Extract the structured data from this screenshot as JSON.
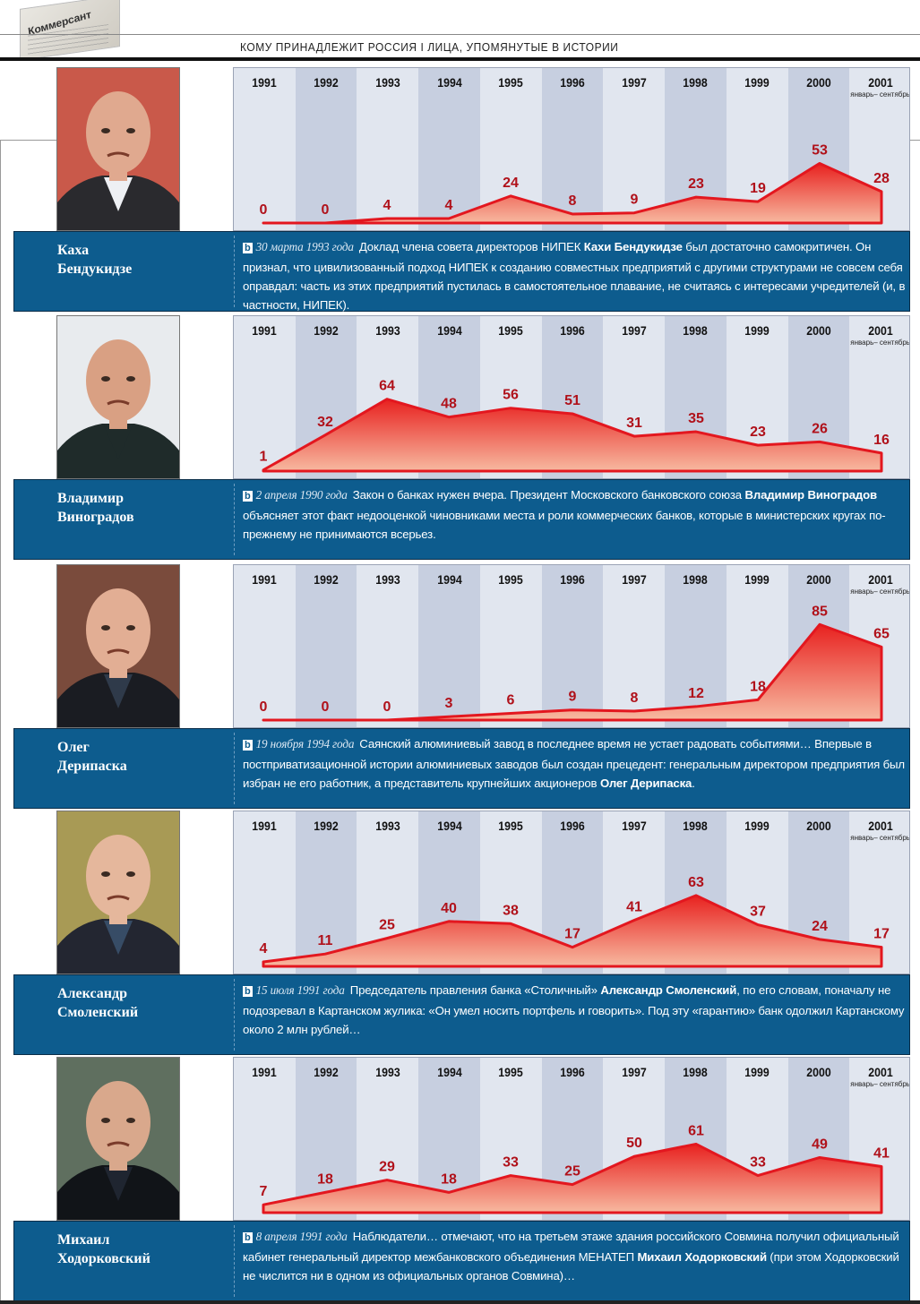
{
  "header": {
    "logo_text": "Коммерсант",
    "title": "КОМУ ПРИНАДЛЕЖИТ РОССИЯ I ЛИЦА, УПОМЯНУТЫЕ В ИСТОРИИ"
  },
  "colors": {
    "band_blue": "#0d5c8e",
    "line_red": "#e3171f",
    "label_red": "#b0111a",
    "col_light": "#e1e6ef",
    "col_dark": "#c7cfe0"
  },
  "chart_data": [
    {
      "type": "area",
      "title": "Каха Бендукидзе",
      "categories": [
        "1991",
        "1992",
        "1993",
        "1994",
        "1995",
        "1996",
        "1997",
        "1998",
        "1999",
        "2000",
        "2001"
      ],
      "category_note": "январь– сентябрь",
      "values": [
        0,
        0,
        4,
        4,
        24,
        8,
        9,
        23,
        19,
        53,
        28
      ],
      "ylim": [
        0,
        90
      ]
    },
    {
      "type": "area",
      "title": "Владимир Виноградов",
      "categories": [
        "1991",
        "1992",
        "1993",
        "1994",
        "1995",
        "1996",
        "1997",
        "1998",
        "1999",
        "2000",
        "2001"
      ],
      "category_note": "январь– сентябрь",
      "values": [
        1,
        32,
        64,
        48,
        56,
        51,
        31,
        35,
        23,
        26,
        16
      ],
      "ylim": [
        0,
        90
      ]
    },
    {
      "type": "area",
      "title": "Олег Дерипаска",
      "categories": [
        "1991",
        "1992",
        "1993",
        "1994",
        "1995",
        "1996",
        "1997",
        "1998",
        "1999",
        "2000",
        "2001"
      ],
      "category_note": "январь– сентябрь",
      "values": [
        0,
        0,
        0,
        3,
        6,
        9,
        8,
        12,
        18,
        85,
        65
      ],
      "ylim": [
        0,
        90
      ]
    },
    {
      "type": "area",
      "title": "Александр Смоленский",
      "categories": [
        "1991",
        "1992",
        "1993",
        "1994",
        "1995",
        "1996",
        "1997",
        "1998",
        "1999",
        "2000",
        "2001"
      ],
      "category_note": "январь– сентябрь",
      "values": [
        4,
        11,
        25,
        40,
        38,
        17,
        41,
        63,
        37,
        24,
        17
      ],
      "ylim": [
        0,
        90
      ]
    },
    {
      "type": "area",
      "title": "Михаил Ходорковский",
      "categories": [
        "1991",
        "1992",
        "1993",
        "1994",
        "1995",
        "1996",
        "1997",
        "1998",
        "1999",
        "2000",
        "2001"
      ],
      "category_note": "январь– сентябрь",
      "values": [
        7,
        18,
        29,
        18,
        33,
        25,
        50,
        61,
        33,
        49,
        41
      ],
      "ylim": [
        0,
        90
      ]
    }
  ],
  "people": [
    {
      "name_line1": "Каха",
      "name_line2": "Бендукидзе",
      "marker": "b",
      "date": "30 марта 1993 года",
      "text_before": "Доклад члена совета директоров НИПЕК ",
      "text_bold": "Кахи Бендукидзе",
      "text_after": " был достаточно самокритичен. Он признал, что цивилизованный подход НИПЕК к созданию совместных предприятий с другими структурами не совсем себя оправдал: часть из этих предприятий пустилась в самостоятельное плавание, не считаясь с интересами учредителей (и, в частности, НИПЕК)."
    },
    {
      "name_line1": "Владимир",
      "name_line2": "Виноградов",
      "marker": "b",
      "date": "2 апреля 1990 года",
      "text_before": "Закон о банках нужен вчера. Президент Московского банковского союза ",
      "text_bold": "Владимир Виноградов",
      "text_after": " объясняет этот факт недооценкой чиновниками места и роли коммерческих банков, которые в министерских кругах по-прежнему не принимаются всерьез."
    },
    {
      "name_line1": "Олег",
      "name_line2": "Дерипаска",
      "marker": "b",
      "date": "19 ноября 1994 года",
      "text_before": "Саянский алюминиевый завод в последнее время не устает радовать событиями… Впервые в постприватизационной истории алюминиевых заводов был создан прецедент: генеральным директором предприятия был избран не его работник, а представитель крупнейших акционеров ",
      "text_bold": "Олег Дерипаска",
      "text_after": "."
    },
    {
      "name_line1": "Александр",
      "name_line2": "Смоленский",
      "marker": "b",
      "date": "15 июля 1991 года",
      "text_before": "Председатель правления банка «Столичный» ",
      "text_bold": "Александр Смоленский",
      "text_after": ", по его словам, поначалу не подозревал в Картанском жулика: «Он умел носить портфель и говорить». Под эту «гарантию» банк одолжил Картанскому около 2 млн рублей…"
    },
    {
      "name_line1": "Михаил",
      "name_line2": "Ходорковский",
      "marker": "b",
      "date": "8 апреля 1991 года",
      "text_before": "Наблюдатели… отмечают, что на третьем этаже здания российского Совмина получил официальный кабинет генеральный директор межбанковского объединения МЕНАТЕП ",
      "text_bold": "Михаил Ходорковский",
      "text_after": " (при этом Ходорковский не числится ни в одном из официальных органов Совмина)…"
    }
  ]
}
